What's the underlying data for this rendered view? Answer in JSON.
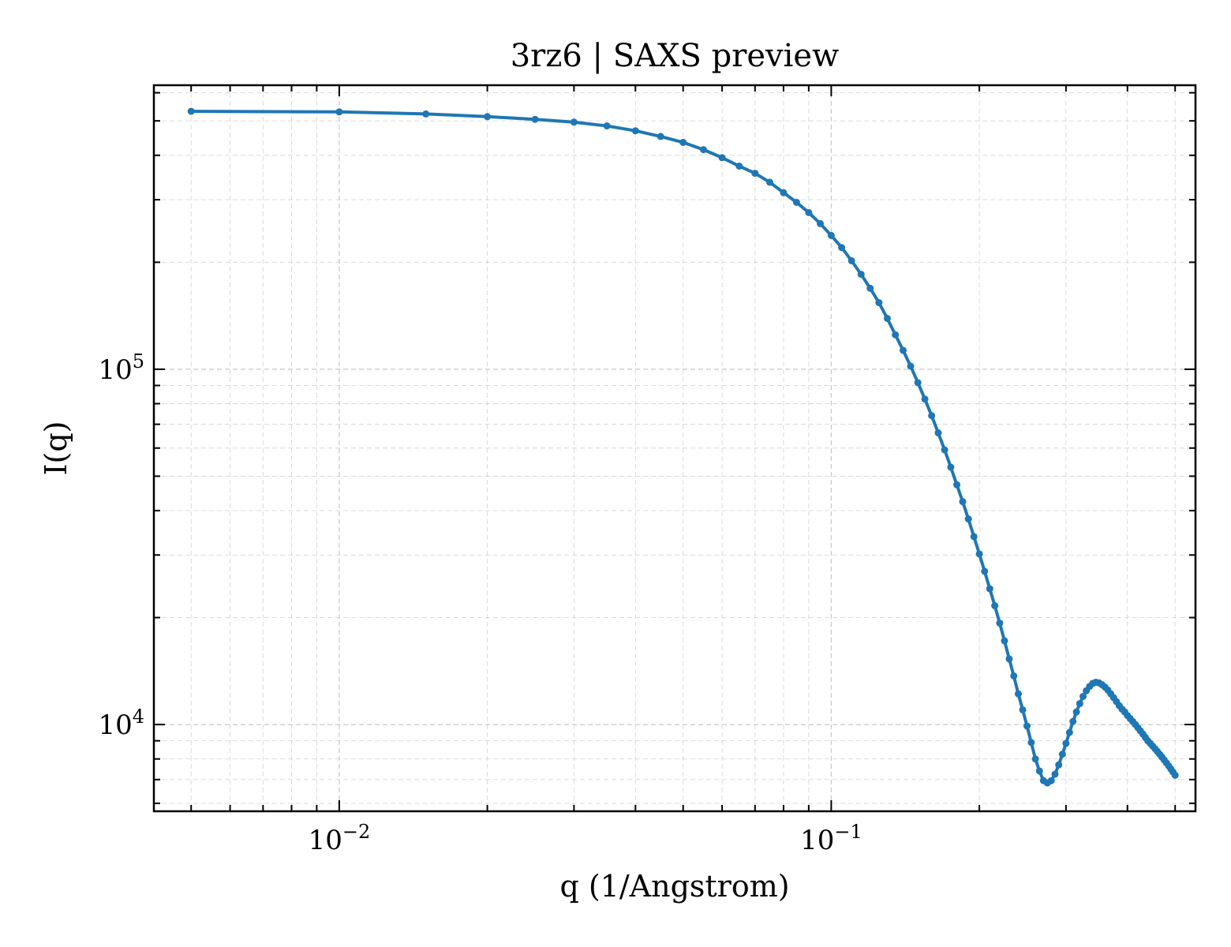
{
  "chart_data": {
    "type": "line",
    "title": "3rz6 | SAXS preview",
    "xlabel": "q (1/Angstrom)",
    "ylabel": "I(q)",
    "xscale": "log",
    "yscale": "log",
    "xlim": [
      0.0042,
      0.55
    ],
    "ylim": [
      5700,
      630000
    ],
    "grid": true,
    "x_tick_labels": [
      {
        "value": 0.01,
        "base": "10",
        "exp": "−2"
      },
      {
        "value": 0.1,
        "base": "10",
        "exp": "−1"
      }
    ],
    "y_tick_labels": [
      {
        "value": 10000,
        "base": "10",
        "exp": "4"
      },
      {
        "value": 100000,
        "base": "10",
        "exp": "5"
      }
    ],
    "series": [
      {
        "color": "#1f77b4",
        "x": [
          0.005,
          0.01,
          0.015,
          0.02,
          0.025,
          0.03,
          0.035,
          0.04,
          0.045,
          0.05,
          0.055,
          0.06,
          0.065,
          0.07,
          0.075,
          0.08,
          0.085,
          0.09,
          0.095,
          0.1,
          0.105,
          0.11,
          0.115,
          0.12,
          0.125,
          0.13,
          0.135,
          0.14,
          0.145,
          0.15,
          0.155,
          0.16,
          0.165,
          0.17,
          0.175,
          0.18,
          0.185,
          0.19,
          0.195,
          0.2,
          0.205,
          0.21,
          0.215,
          0.22,
          0.225,
          0.23,
          0.235,
          0.24,
          0.245,
          0.25,
          0.255,
          0.26,
          0.265,
          0.27,
          0.275,
          0.28,
          0.285,
          0.29,
          0.295,
          0.3,
          0.305,
          0.31,
          0.315,
          0.32,
          0.325,
          0.33,
          0.335,
          0.34,
          0.345,
          0.35,
          0.355,
          0.36,
          0.365,
          0.37,
          0.375,
          0.38,
          0.385,
          0.39,
          0.395,
          0.4,
          0.405,
          0.41,
          0.415,
          0.42,
          0.425,
          0.43,
          0.435,
          0.44,
          0.445,
          0.45,
          0.455,
          0.46,
          0.465,
          0.47,
          0.475,
          0.48,
          0.485,
          0.49,
          0.495,
          0.5
        ],
        "y": [
          532000,
          530000,
          523000,
          514000,
          505000,
          496000,
          484000,
          469000,
          452000,
          435000,
          415000,
          394000,
          373000,
          356000,
          336000,
          314000,
          295000,
          276000,
          257000,
          238000,
          220000,
          202000,
          185000,
          169000,
          154000,
          139000,
          125000,
          113000,
          102000,
          91700,
          82400,
          74000,
          66200,
          59300,
          53000,
          47300,
          42400,
          37900,
          33800,
          30200,
          27000,
          24100,
          21600,
          19300,
          17200,
          15300,
          13700,
          12200,
          11000,
          9900,
          8900,
          8000,
          7400,
          6950,
          6850,
          6950,
          7250,
          7700,
          8250,
          8850,
          9500,
          10200,
          10850,
          11450,
          12000,
          12450,
          12800,
          13050,
          13150,
          13100,
          12950,
          12750,
          12500,
          12200,
          11900,
          11600,
          11300,
          11050,
          10850,
          10600,
          10400,
          10200,
          10000,
          9800,
          9600,
          9400,
          9200,
          9000,
          8850,
          8700,
          8550,
          8400,
          8250,
          8100,
          7950,
          7800,
          7650,
          7500,
          7350,
          7200
        ]
      }
    ]
  }
}
